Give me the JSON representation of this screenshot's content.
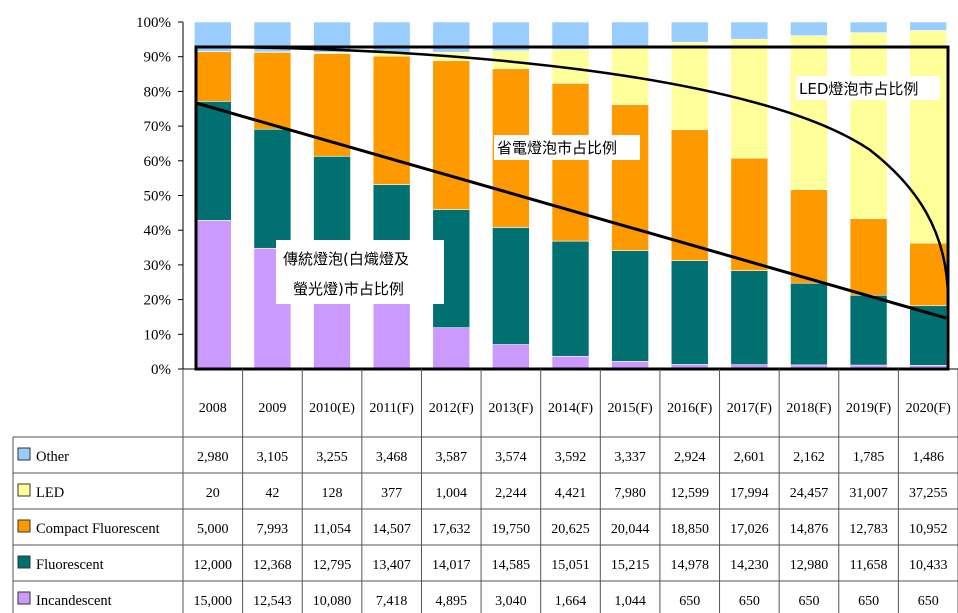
{
  "chart_data": {
    "type": "bar",
    "stacked": "percent",
    "categories": [
      "2008",
      "2009",
      "2010(E)",
      "2011(F)",
      "2012(F)",
      "2013(F)",
      "2014(F)",
      "2015(F)",
      "2016(F)",
      "2017(F)",
      "2018(F)",
      "2019(F)",
      "2020(F)"
    ],
    "y_ticks": [
      "0%",
      "10%",
      "20%",
      "30%",
      "40%",
      "50%",
      "60%",
      "70%",
      "80%",
      "90%",
      "100%"
    ],
    "ylim": [
      0,
      100
    ],
    "grid": false,
    "series": [
      {
        "name": "Incandescent",
        "color": "#cc99ff",
        "values": [
          15000,
          12543,
          10080,
          7418,
          4895,
          3040,
          1664,
          1044,
          650,
          650,
          650,
          650,
          650
        ],
        "labels": [
          "15,000",
          "12,543",
          "10,080",
          "7,418",
          "4,895",
          "3,040",
          "1,664",
          "1,044",
          "650",
          "650",
          "650",
          "650",
          "650"
        ]
      },
      {
        "name": "Fluorescent",
        "color": "#007070",
        "values": [
          12000,
          12368,
          12795,
          13407,
          14017,
          14585,
          15051,
          15215,
          14978,
          14230,
          12980,
          11658,
          10433
        ],
        "labels": [
          "12,000",
          "12,368",
          "12,795",
          "13,407",
          "14,017",
          "14,585",
          "15,051",
          "15,215",
          "14,978",
          "14,230",
          "12,980",
          "11,658",
          "10,433"
        ]
      },
      {
        "name": "Compact Fluorescent",
        "color": "#ff9900",
        "values": [
          5000,
          7993,
          11054,
          14507,
          17632,
          19750,
          20625,
          20044,
          18850,
          17026,
          14876,
          12783,
          10952
        ],
        "labels": [
          "5,000",
          "7,993",
          "11,054",
          "14,507",
          "17,632",
          "19,750",
          "20,625",
          "20,044",
          "18,850",
          "17,026",
          "14,876",
          "12,783",
          "10,952"
        ]
      },
      {
        "name": "LED",
        "color": "#ffff99",
        "values": [
          20,
          42,
          128,
          377,
          1004,
          2244,
          4421,
          7980,
          12599,
          17994,
          24457,
          31007,
          37255
        ],
        "labels": [
          "20",
          "42",
          "128",
          "377",
          "1,004",
          "2,244",
          "4,421",
          "7,980",
          "12,599",
          "17,994",
          "24,457",
          "31,007",
          "37,255"
        ]
      },
      {
        "name": "Other",
        "color": "#99ccff",
        "values": [
          2980,
          3105,
          3255,
          3468,
          3587,
          3574,
          3592,
          3337,
          2924,
          2601,
          2162,
          1785,
          1486
        ],
        "labels": [
          "2,980",
          "3,105",
          "3,255",
          "3,468",
          "3,587",
          "3,574",
          "3,592",
          "3,337",
          "2,924",
          "2,601",
          "2,162",
          "1,785",
          "1,486"
        ]
      }
    ],
    "table_row_order": [
      "Other",
      "LED",
      "Compact Fluorescent",
      "Fluorescent",
      "Incandescent"
    ],
    "annotations": [
      {
        "text": "LED燈泡市占比例"
      },
      {
        "text": "省電燈泡市占比例"
      },
      {
        "text_lines": [
          "傳統燈泡(白熾燈及",
          "螢光燈)市占比例"
        ]
      }
    ]
  }
}
